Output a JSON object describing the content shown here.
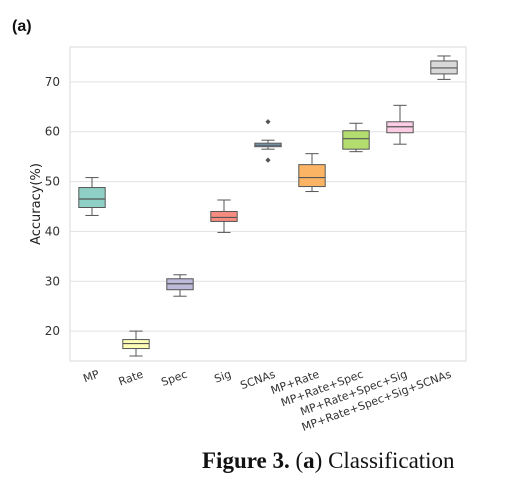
{
  "panel_label": "(a)",
  "caption": {
    "figure": "Figure 3.",
    "panel": "a",
    "text": "Classification"
  },
  "chart_data": {
    "type": "boxplot",
    "title": "",
    "xlabel": "",
    "ylabel": "Accuracy(%)",
    "ylim": [
      14,
      77
    ],
    "yticks": [
      20,
      30,
      40,
      50,
      60,
      70
    ],
    "grid": true,
    "categories": [
      "MP",
      "Rate",
      "Spec",
      "Sig",
      "SCNAs",
      "MP+Rate",
      "MP+Rate+Spec",
      "MP+Rate+Spec+Sig",
      "MP+Rate+Spec+Sig+SCNAs"
    ],
    "boxes": [
      {
        "min": 43.2,
        "q1": 44.8,
        "median": 46.5,
        "q3": 48.8,
        "max": 50.8,
        "outliers": [],
        "color": "#8fd0c6"
      },
      {
        "min": 15.0,
        "q1": 16.5,
        "median": 17.5,
        "q3": 18.3,
        "max": 20.0,
        "outliers": [],
        "color": "#fdfdb6"
      },
      {
        "min": 27.0,
        "q1": 28.3,
        "median": 29.5,
        "q3": 30.5,
        "max": 31.3,
        "outliers": [],
        "color": "#bdb9db"
      },
      {
        "min": 39.8,
        "q1": 42.0,
        "median": 42.8,
        "q3": 44.0,
        "max": 46.3,
        "outliers": [],
        "color": "#f68c80"
      },
      {
        "min": 56.5,
        "q1": 57.0,
        "median": 57.3,
        "q3": 57.7,
        "max": 58.3,
        "outliers": [
          62.0,
          54.3
        ],
        "color": "#82b0d2"
      },
      {
        "min": 48.0,
        "q1": 49.0,
        "median": 50.8,
        "q3": 53.4,
        "max": 55.6,
        "outliers": [],
        "color": "#fbb463"
      },
      {
        "min": 56.0,
        "q1": 56.5,
        "median": 58.6,
        "q3": 60.2,
        "max": 61.7,
        "outliers": [],
        "color": "#b3dd6f"
      },
      {
        "min": 57.5,
        "q1": 59.8,
        "median": 61.0,
        "q3": 62.0,
        "max": 65.3,
        "outliers": [],
        "color": "#fcccE5"
      },
      {
        "min": 70.5,
        "q1": 71.6,
        "median": 72.8,
        "q3": 74.2,
        "max": 75.2,
        "outliers": [],
        "color": "#d9d9d9"
      }
    ]
  }
}
